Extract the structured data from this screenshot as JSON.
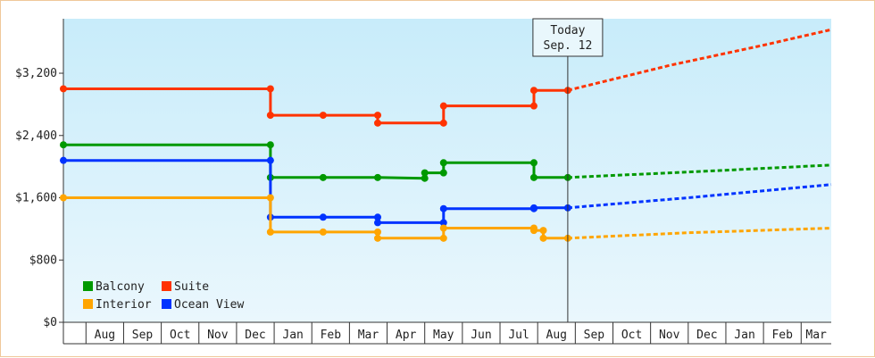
{
  "chart_data": {
    "type": "line",
    "subtype": "step",
    "title": "",
    "xlabel": "",
    "ylabel": "",
    "ylim": [
      0,
      3900
    ],
    "y_ticks": [
      {
        "value": 0,
        "label": "$0"
      },
      {
        "value": 800,
        "label": "$800"
      },
      {
        "value": 1600,
        "label": "$1,600"
      },
      {
        "value": 2400,
        "label": "$2,400"
      },
      {
        "value": 3200,
        "label": "$3,200"
      }
    ],
    "months": [
      "Aug",
      "Sep",
      "Oct",
      "Nov",
      "Dec",
      "Jan",
      "Feb",
      "Mar",
      "Apr",
      "May",
      "Jun",
      "Jul",
      "Aug",
      "Sep",
      "Oct",
      "Nov",
      "Dec",
      "Jan",
      "Feb",
      "Mar"
    ],
    "x_unit": "months since start of first shown month (July)",
    "xlim": [
      0.4,
      20.8
    ],
    "today": {
      "x": 13.8,
      "line1": "Today",
      "line2": "Sep. 12"
    },
    "background": {
      "top": "#c8ecfa",
      "bottom": "#eaf7fd"
    },
    "legend": {
      "placement": "bottom-left"
    },
    "grid": false,
    "series": [
      {
        "name": "Suite",
        "color": "#ff3300",
        "points": [
          [
            0.4,
            3000
          ],
          [
            5.9,
            3000
          ],
          [
            5.9,
            2660
          ],
          [
            7.3,
            2660
          ],
          [
            8.75,
            2660
          ],
          [
            8.75,
            2560
          ],
          [
            10.5,
            2560
          ],
          [
            10.5,
            2780
          ],
          [
            12.9,
            2780
          ],
          [
            12.9,
            2980
          ],
          [
            13.8,
            2980
          ]
        ],
        "forecast": [
          [
            13.8,
            2980
          ],
          [
            16.5,
            3300
          ],
          [
            19.0,
            3560
          ],
          [
            20.8,
            3760
          ]
        ]
      },
      {
        "name": "Balcony",
        "color": "#009900",
        "points": [
          [
            0.4,
            2280
          ],
          [
            5.9,
            2280
          ],
          [
            5.9,
            1860
          ],
          [
            7.3,
            1860
          ],
          [
            8.75,
            1860
          ],
          [
            10.0,
            1850
          ],
          [
            10.0,
            1920
          ],
          [
            10.5,
            1920
          ],
          [
            10.5,
            2050
          ],
          [
            12.9,
            2050
          ],
          [
            12.9,
            1860
          ],
          [
            13.8,
            1860
          ]
        ],
        "forecast": [
          [
            13.8,
            1860
          ],
          [
            17.0,
            1930
          ],
          [
            20.8,
            2020
          ]
        ]
      },
      {
        "name": "Ocean View",
        "color": "#0033ff",
        "points": [
          [
            0.4,
            2080
          ],
          [
            5.9,
            2080
          ],
          [
            5.9,
            1350
          ],
          [
            7.3,
            1350
          ],
          [
            8.75,
            1350
          ],
          [
            8.75,
            1280
          ],
          [
            10.5,
            1280
          ],
          [
            10.5,
            1460
          ],
          [
            12.9,
            1460
          ],
          [
            12.9,
            1470
          ],
          [
            13.8,
            1470
          ]
        ],
        "forecast": [
          [
            13.8,
            1470
          ],
          [
            17.0,
            1600
          ],
          [
            20.8,
            1770
          ]
        ]
      },
      {
        "name": "Interior",
        "color": "#ffa500",
        "points": [
          [
            0.4,
            1600
          ],
          [
            5.9,
            1600
          ],
          [
            5.9,
            1160
          ],
          [
            7.3,
            1160
          ],
          [
            8.75,
            1160
          ],
          [
            8.75,
            1080
          ],
          [
            10.5,
            1080
          ],
          [
            10.5,
            1210
          ],
          [
            12.9,
            1210
          ],
          [
            12.9,
            1180
          ],
          [
            13.15,
            1180
          ],
          [
            13.15,
            1080
          ],
          [
            13.8,
            1080
          ]
        ],
        "forecast": [
          [
            13.8,
            1080
          ],
          [
            17.0,
            1150
          ],
          [
            20.8,
            1210
          ]
        ]
      }
    ],
    "legend_order": [
      "Balcony",
      "Suite",
      "Interior",
      "Ocean View"
    ]
  }
}
